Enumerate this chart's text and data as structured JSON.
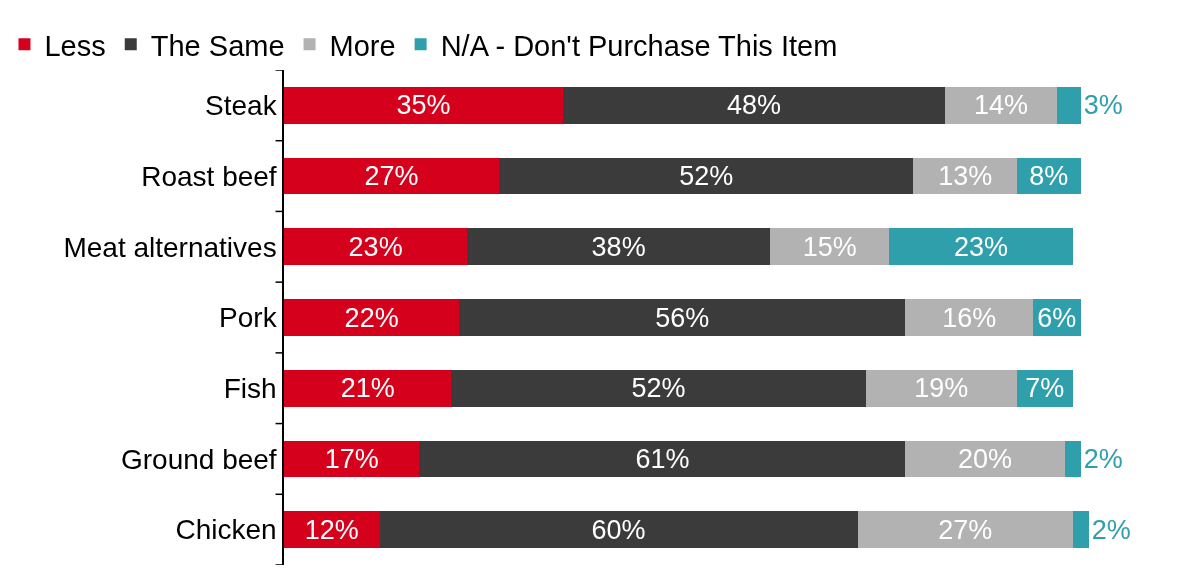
{
  "chart_data": {
    "type": "bar",
    "orientation": "horizontal",
    "stacked": true,
    "legend": "top left",
    "grid": false,
    "categories": [
      "Steak",
      "Roast beef",
      "Meat alternatives",
      "Pork",
      "Fish",
      "Ground beef",
      "Chicken"
    ],
    "series": [
      {
        "name": "Less",
        "color": "#d5001c",
        "values": [
          35,
          27,
          23,
          22,
          21,
          17,
          12
        ],
        "value_labels": [
          "35%",
          "27%",
          "23%",
          "22%",
          "21%",
          "17%",
          "12%"
        ]
      },
      {
        "name": "The Same",
        "color": "#3b3b3b",
        "values": [
          48,
          52,
          38,
          56,
          52,
          61,
          60
        ],
        "value_labels": [
          "48%",
          "52%",
          "38%",
          "56%",
          "52%",
          "61%",
          "60%"
        ]
      },
      {
        "name": "More",
        "color": "#b2b2b2",
        "values": [
          14,
          13,
          15,
          16,
          19,
          20,
          27
        ],
        "value_labels": [
          "14%",
          "13%",
          "15%",
          "16%",
          "19%",
          "20%",
          "27%"
        ]
      },
      {
        "name": "N/A - Don't Purchase This Item",
        "color": "#2e9fab",
        "values": [
          3,
          8,
          23,
          6,
          7,
          2,
          2
        ],
        "value_labels": [
          "3%",
          "8%",
          "23%",
          "6%",
          "7%",
          "2%",
          "2%"
        ]
      }
    ]
  }
}
